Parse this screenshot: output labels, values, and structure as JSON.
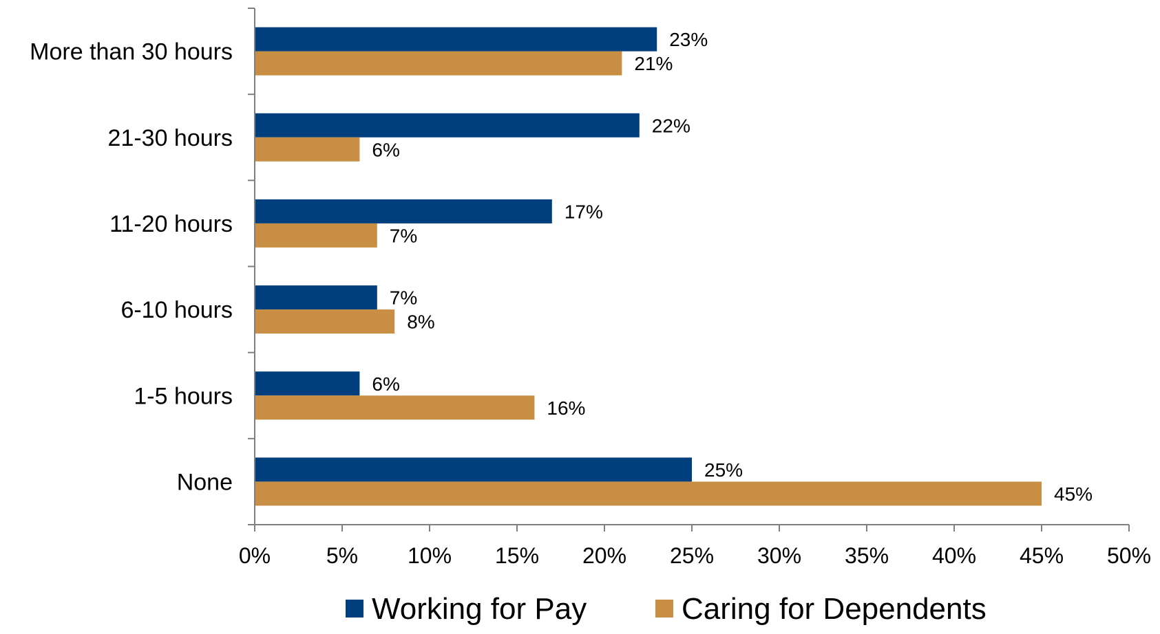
{
  "chart_data": {
    "type": "bar",
    "orientation": "horizontal",
    "categories": [
      "More than 30 hours",
      "21-30 hours",
      "11-20 hours",
      "6-10 hours",
      "1-5 hours",
      "None"
    ],
    "series": [
      {
        "name": "Working for Pay",
        "color": "#003f7d",
        "values": [
          23,
          22,
          17,
          7,
          6,
          25
        ],
        "labels": [
          "23%",
          "22%",
          "17%",
          "7%",
          "6%",
          "25%"
        ]
      },
      {
        "name": "Caring for Dependents",
        "color": "#c88f44",
        "values": [
          21,
          6,
          7,
          8,
          16,
          45
        ],
        "labels": [
          "21%",
          "6%",
          "7%",
          "8%",
          "16%",
          "45%"
        ]
      }
    ],
    "xlim": [
      0,
      50
    ],
    "xticks": [
      0,
      5,
      10,
      15,
      20,
      25,
      30,
      35,
      40,
      45,
      50
    ],
    "xtick_labels": [
      "0%",
      "5%",
      "10%",
      "15%",
      "20%",
      "25%",
      "30%",
      "35%",
      "40%",
      "45%",
      "50%"
    ],
    "grid": false,
    "legend_position": "bottom"
  }
}
